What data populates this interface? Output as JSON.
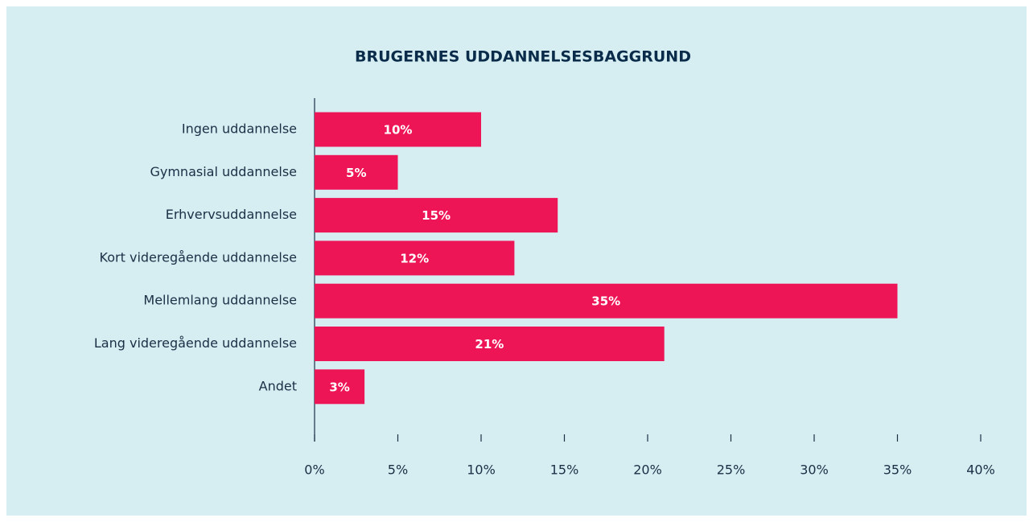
{
  "chart_data": {
    "type": "bar",
    "orientation": "horizontal",
    "title": "BRUGERNES UDDANNELSESBAGGRUND",
    "categories": [
      "Ingen uddannelse",
      "Gymnasial uddannelse",
      "Erhvervsuddannelse",
      "Kort videregående uddannelse",
      "Mellemlang uddannelse",
      "Lang videregående uddannelse",
      "Andet"
    ],
    "values": [
      10,
      5,
      14.6,
      12,
      35,
      21,
      3
    ],
    "value_labels": [
      "10%",
      "5%",
      "15%",
      "12%",
      "35%",
      "21%",
      "3%"
    ],
    "color": "#ee1556",
    "xlim": [
      0,
      40
    ],
    "xticks": [
      {
        "value": 0,
        "label": "0%"
      },
      {
        "value": 5,
        "label": "5%"
      },
      {
        "value": 10,
        "label": "10%"
      },
      {
        "value": 15,
        "label": "15%"
      },
      {
        "value": 20,
        "label": "20%"
      },
      {
        "value": 25,
        "label": "25%"
      },
      {
        "value": 30,
        "label": "30%"
      },
      {
        "value": 35,
        "label": "35%"
      },
      {
        "value": 40,
        "label": "40%"
      }
    ],
    "grid": false
  }
}
